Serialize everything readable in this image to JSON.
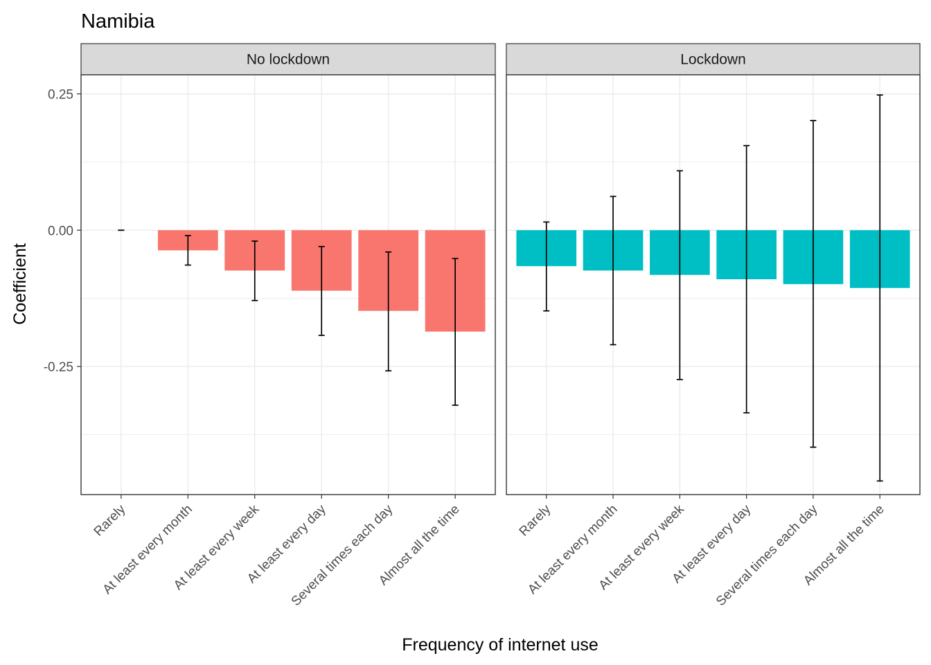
{
  "chart_data": {
    "type": "bar",
    "title": "Namibia",
    "xlabel": "Frequency of internet use",
    "ylabel": "Coefficient",
    "categories": [
      "Rarely",
      "At least every month",
      "At least every week",
      "At least every day",
      "Several times each day",
      "Almost all the time"
    ],
    "ylim": [
      -0.485,
      0.285
    ],
    "y_ticks": [
      0.25,
      0.0,
      -0.25
    ],
    "y_tick_labels": [
      "0.25",
      "0.00",
      "-0.25"
    ],
    "grid": true,
    "legend": "none",
    "error_bars": true,
    "panels": [
      {
        "label": "No lockdown",
        "color": "#F8766D",
        "values": [
          0.0,
          -0.037,
          -0.074,
          -0.111,
          -0.148,
          -0.186
        ],
        "ci_low": [
          0.0,
          -0.064,
          -0.129,
          -0.193,
          -0.258,
          -0.321
        ],
        "ci_high": [
          0.0,
          -0.01,
          -0.02,
          -0.03,
          -0.04,
          -0.052
        ]
      },
      {
        "label": "Lockdown",
        "color": "#00BFC4",
        "values": [
          -0.066,
          -0.074,
          -0.082,
          -0.09,
          -0.099,
          -0.106
        ],
        "ci_low": [
          -0.148,
          -0.21,
          -0.274,
          -0.335,
          -0.398,
          -0.46
        ],
        "ci_high": [
          0.015,
          0.062,
          0.109,
          0.155,
          0.201,
          0.248
        ]
      }
    ]
  }
}
